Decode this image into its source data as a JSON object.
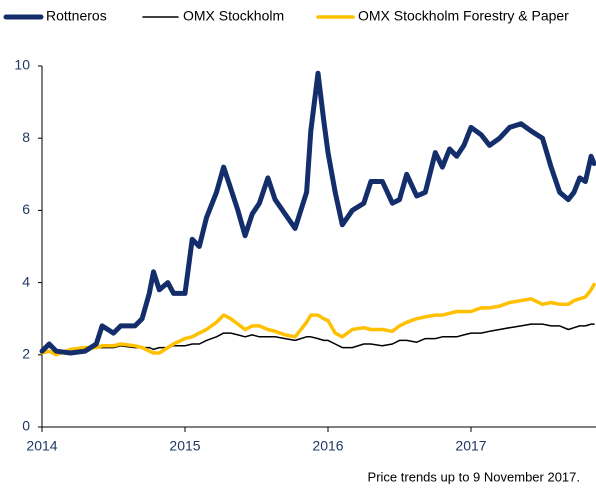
{
  "chart_data": {
    "type": "line",
    "note": "Price trends up to 9 November 2017.",
    "x": [
      2014.0,
      2014.05,
      2014.1,
      2014.2,
      2014.3,
      2014.38,
      2014.42,
      2014.5,
      2014.55,
      2014.65,
      2014.7,
      2014.75,
      2014.78,
      2014.82,
      2014.88,
      2014.92,
      2015.0,
      2015.05,
      2015.1,
      2015.15,
      2015.22,
      2015.27,
      2015.32,
      2015.37,
      2015.42,
      2015.47,
      2015.52,
      2015.58,
      2015.63,
      2015.7,
      2015.77,
      2015.85,
      2015.88,
      2015.93,
      2015.97,
      2016.0,
      2016.05,
      2016.1,
      2016.17,
      2016.25,
      2016.3,
      2016.38,
      2016.45,
      2016.5,
      2016.55,
      2016.62,
      2016.68,
      2016.75,
      2016.8,
      2016.85,
      2016.9,
      2016.95,
      2017.0,
      2017.07,
      2017.13,
      2017.2,
      2017.27,
      2017.35,
      2017.42,
      2017.5,
      2017.56,
      2017.62,
      2017.68,
      2017.72,
      2017.76,
      2017.8,
      2017.84,
      2017.86
    ],
    "series": [
      {
        "name": "Rottneros",
        "color": "#132e6b",
        "width": 5,
        "values": [
          2.1,
          2.3,
          2.1,
          2.05,
          2.1,
          2.3,
          2.8,
          2.6,
          2.8,
          2.8,
          3.0,
          3.7,
          4.3,
          3.8,
          4.0,
          3.7,
          3.7,
          5.2,
          5.0,
          5.8,
          6.5,
          7.2,
          6.6,
          6.0,
          5.3,
          5.9,
          6.2,
          6.9,
          6.3,
          5.9,
          5.5,
          6.5,
          8.2,
          9.8,
          8.5,
          7.6,
          6.5,
          5.6,
          6.0,
          6.2,
          6.8,
          6.8,
          6.2,
          6.3,
          7.0,
          6.4,
          6.5,
          7.6,
          7.2,
          7.7,
          7.5,
          7.8,
          8.3,
          8.1,
          7.8,
          8.0,
          8.3,
          8.4,
          8.2,
          8.0,
          7.2,
          6.5,
          6.3,
          6.5,
          6.9,
          6.8,
          7.5,
          7.3
        ]
      },
      {
        "name": "OMX Stockholm",
        "color": "#000000",
        "width": 1.5,
        "values": [
          2.05,
          2.1,
          2.05,
          2.1,
          2.15,
          2.2,
          2.2,
          2.2,
          2.25,
          2.2,
          2.2,
          2.2,
          2.15,
          2.2,
          2.2,
          2.25,
          2.25,
          2.3,
          2.3,
          2.4,
          2.5,
          2.6,
          2.6,
          2.55,
          2.5,
          2.55,
          2.5,
          2.5,
          2.5,
          2.45,
          2.4,
          2.5,
          2.5,
          2.45,
          2.4,
          2.4,
          2.3,
          2.2,
          2.2,
          2.3,
          2.3,
          2.25,
          2.3,
          2.4,
          2.4,
          2.35,
          2.45,
          2.45,
          2.5,
          2.5,
          2.5,
          2.55,
          2.6,
          2.6,
          2.65,
          2.7,
          2.75,
          2.8,
          2.85,
          2.85,
          2.8,
          2.8,
          2.7,
          2.75,
          2.8,
          2.8,
          2.85,
          2.85
        ]
      },
      {
        "name": "OMX Stockholm Forestry & Paper",
        "color": "#ffc000",
        "width": 3.5,
        "values": [
          2.05,
          2.1,
          2.0,
          2.15,
          2.2,
          2.2,
          2.25,
          2.25,
          2.3,
          2.25,
          2.2,
          2.1,
          2.05,
          2.05,
          2.2,
          2.3,
          2.45,
          2.5,
          2.6,
          2.7,
          2.9,
          3.1,
          3.0,
          2.85,
          2.7,
          2.8,
          2.8,
          2.7,
          2.65,
          2.55,
          2.5,
          2.9,
          3.1,
          3.1,
          3.0,
          2.95,
          2.6,
          2.5,
          2.7,
          2.75,
          2.7,
          2.7,
          2.65,
          2.8,
          2.9,
          3.0,
          3.05,
          3.1,
          3.1,
          3.15,
          3.2,
          3.2,
          3.2,
          3.3,
          3.3,
          3.35,
          3.45,
          3.5,
          3.55,
          3.4,
          3.45,
          3.4,
          3.4,
          3.5,
          3.55,
          3.6,
          3.8,
          3.95
        ]
      }
    ],
    "xlim": [
      2014,
      2017.86
    ],
    "xticks": [
      2014,
      2015,
      2016,
      2017
    ],
    "ylim": [
      0,
      10
    ],
    "yticks": [
      0,
      2,
      4,
      6,
      8,
      10
    ],
    "legend": "top"
  }
}
